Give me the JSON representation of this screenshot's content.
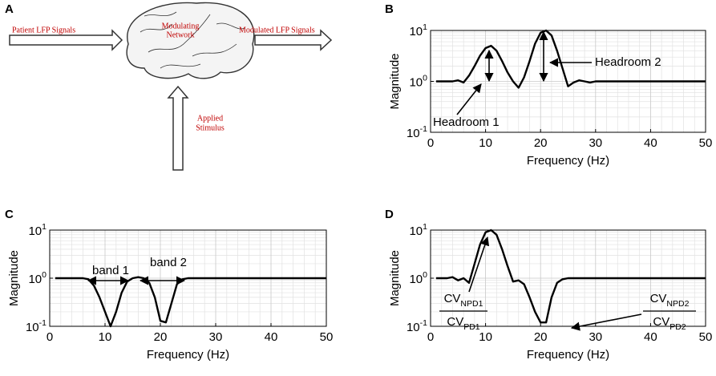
{
  "panels": [
    "A",
    "B",
    "C",
    "D"
  ],
  "diagram": {
    "input": "Patient LFP Signals",
    "network": [
      "Modulating",
      "Network"
    ],
    "output": "Modulated LFP Signals",
    "stimulus": [
      "Applied",
      "Stimulus"
    ]
  },
  "chart_data": [
    {
      "type": "line",
      "xlabel": "Frequency (Hz)",
      "ylabel": "Magnitude",
      "yscale": "log",
      "grid": true,
      "color": "#000000",
      "x": [
        1,
        2,
        3,
        4,
        5,
        6,
        7,
        8,
        9,
        10,
        11,
        12,
        13,
        14,
        15,
        16,
        17,
        18,
        19,
        20,
        21,
        22,
        23,
        24,
        25,
        26,
        27,
        28,
        29,
        30,
        31,
        32,
        33,
        34,
        35,
        36,
        37,
        38,
        39,
        40,
        41,
        42,
        43,
        44,
        45,
        46,
        47,
        48,
        49,
        50
      ],
      "values": [
        1,
        1,
        1,
        1,
        1.05,
        0.95,
        1.3,
        2,
        3.2,
        4.5,
        5,
        4,
        2.5,
        1.5,
        1,
        0.75,
        1.2,
        2.5,
        5.5,
        9,
        10,
        8,
        4,
        1.8,
        0.8,
        0.95,
        1.05,
        1,
        0.95,
        1,
        1,
        1,
        1,
        1,
        1,
        1,
        1,
        1,
        1,
        1,
        1,
        1,
        1,
        1,
        1,
        1,
        1,
        1,
        1,
        1
      ],
      "xlim": [
        0,
        50
      ],
      "xticks": [
        0,
        10,
        20,
        30,
        40,
        50
      ],
      "ylim": [
        0.1,
        10
      ],
      "yticks": [
        {
          "value": 0.1,
          "label": "10^-1"
        },
        {
          "value": 1,
          "label": "10^0"
        },
        {
          "value": 10,
          "label": "10^1"
        }
      ],
      "annotations": [
        "Headroom 1",
        "Headroom 2"
      ]
    },
    {
      "type": "line",
      "xlabel": "Frequency (Hz)",
      "ylabel": "Magnitude",
      "yscale": "log",
      "grid": true,
      "color": "#000000",
      "x": [
        1,
        2,
        3,
        4,
        5,
        6,
        7,
        8,
        9,
        10,
        11,
        12,
        13,
        14,
        15,
        16,
        17,
        18,
        19,
        20,
        21,
        22,
        23,
        24,
        25,
        26,
        27,
        28,
        29,
        30,
        31,
        32,
        33,
        34,
        35,
        36,
        37,
        38,
        39,
        40,
        41,
        42,
        43,
        44,
        45,
        46,
        47,
        48,
        49,
        50
      ],
      "values": [
        1,
        1,
        1,
        1,
        1,
        1,
        0.95,
        0.7,
        0.4,
        0.2,
        0.1,
        0.2,
        0.5,
        0.85,
        1,
        1.05,
        1,
        0.8,
        0.4,
        0.13,
        0.12,
        0.3,
        0.75,
        0.95,
        1,
        1,
        1,
        1,
        1,
        1,
        1,
        1,
        1,
        1,
        1,
        1,
        1,
        1,
        1,
        1,
        1,
        1,
        1,
        1,
        1,
        1,
        1,
        1,
        1,
        1
      ],
      "xlim": [
        0,
        50
      ],
      "xticks": [
        0,
        10,
        20,
        30,
        40,
        50
      ],
      "ylim": [
        0.1,
        10
      ],
      "yticks": [
        {
          "value": 0.1,
          "label": "10^-1"
        },
        {
          "value": 1,
          "label": "10^0"
        },
        {
          "value": 10,
          "label": "10^1"
        }
      ],
      "annotations": [
        "band 1",
        "band 2"
      ]
    },
    {
      "type": "line",
      "xlabel": "Frequency (Hz)",
      "ylabel": "Magnitude",
      "yscale": "log",
      "grid": true,
      "color": "#000000",
      "x": [
        1,
        2,
        3,
        4,
        5,
        6,
        7,
        8,
        9,
        10,
        11,
        12,
        13,
        14,
        15,
        16,
        17,
        18,
        19,
        20,
        21,
        22,
        23,
        24,
        25,
        26,
        27,
        28,
        29,
        30,
        31,
        32,
        33,
        34,
        35,
        36,
        37,
        38,
        39,
        40,
        41,
        42,
        43,
        44,
        45,
        46,
        47,
        48,
        49,
        50
      ],
      "values": [
        1,
        1,
        1,
        1.05,
        0.9,
        1,
        0.8,
        2,
        5,
        9,
        10,
        8,
        4,
        1.8,
        0.85,
        0.9,
        0.75,
        0.4,
        0.2,
        0.12,
        0.12,
        0.4,
        0.8,
        0.95,
        1,
        1,
        1,
        1,
        1,
        1,
        1,
        1,
        1,
        1,
        1,
        1,
        1,
        1,
        1,
        1,
        1,
        1,
        1,
        1,
        1,
        1,
        1,
        1,
        1,
        1
      ],
      "xlim": [
        0,
        50
      ],
      "xticks": [
        0,
        10,
        20,
        30,
        40,
        50
      ],
      "ylim": [
        0.1,
        10
      ],
      "yticks": [
        {
          "value": 0.1,
          "label": "10^-1"
        },
        {
          "value": 1,
          "label": "10^0"
        },
        {
          "value": 10,
          "label": "10^1"
        }
      ],
      "annotations": [
        "CV_NPD1",
        "CV_PD1",
        "CV_NPD2",
        "CV_PD2"
      ]
    }
  ]
}
